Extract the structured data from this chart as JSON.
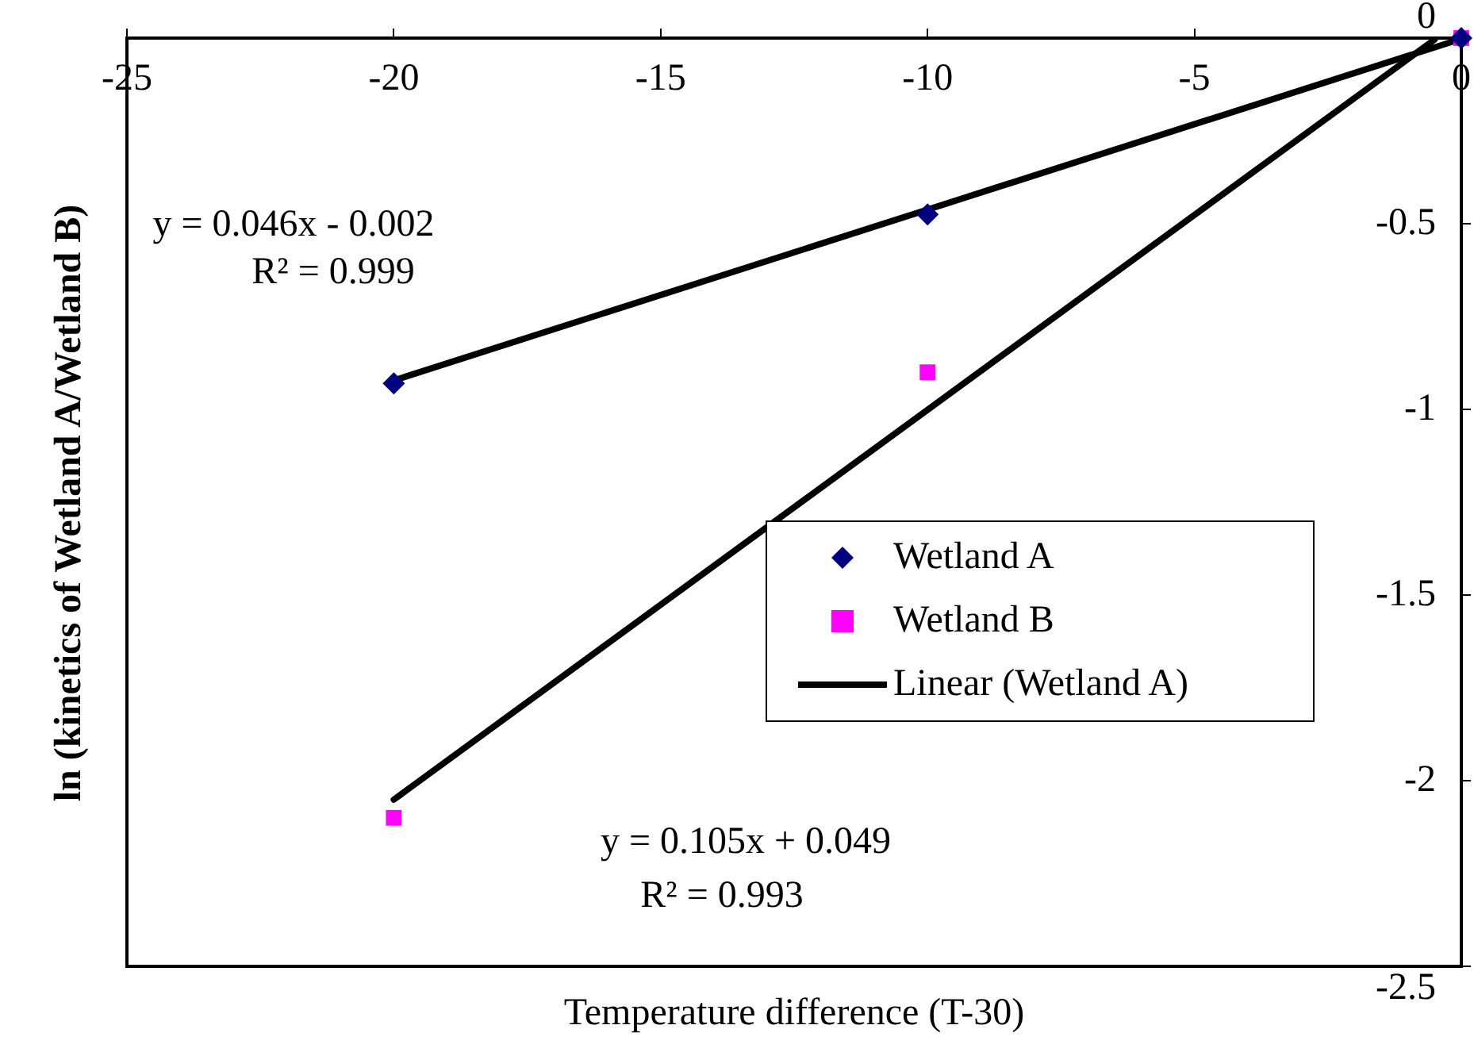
{
  "chart_data": {
    "type": "scatter",
    "xlabel": "Temperature difference (T-30)",
    "ylabel": "ln (kinetics of Wetland A/Wetland B)",
    "xlim": [
      -25,
      0
    ],
    "xticks": [
      -25,
      -20,
      -15,
      -10,
      -5,
      0
    ],
    "ylim": [
      -2.5,
      0
    ],
    "yticks": [
      0,
      -0.5,
      -1,
      -1.5,
      -2,
      -2.5
    ],
    "grid": false,
    "legend": "right",
    "series": [
      {
        "name": "Wetland A",
        "marker": "diamond",
        "color": "#000080",
        "x": [
          -20,
          -10,
          0
        ],
        "values": [
          -0.93,
          -0.475,
          0
        ]
      },
      {
        "name": "Wetland B",
        "marker": "square",
        "color": "#ff00ff",
        "x": [
          -20,
          -10,
          0
        ],
        "values": [
          -2.1,
          -0.9,
          0
        ]
      },
      {
        "name": "Linear (Wetland A)",
        "type": "line",
        "marker": "none",
        "color": "#000000",
        "x": [
          -20,
          0
        ],
        "values": [
          -0.922,
          -0.002
        ]
      },
      {
        "type": "line",
        "marker": "none",
        "color": "#000000",
        "x": [
          -20,
          -0.5
        ],
        "values": [
          -2.051,
          -0.004
        ]
      }
    ],
    "annotations": [
      "y = 0.046x - 0.002",
      "R² = 0.999",
      "y = 0.105x + 0.049",
      "R² = 0.993"
    ]
  }
}
